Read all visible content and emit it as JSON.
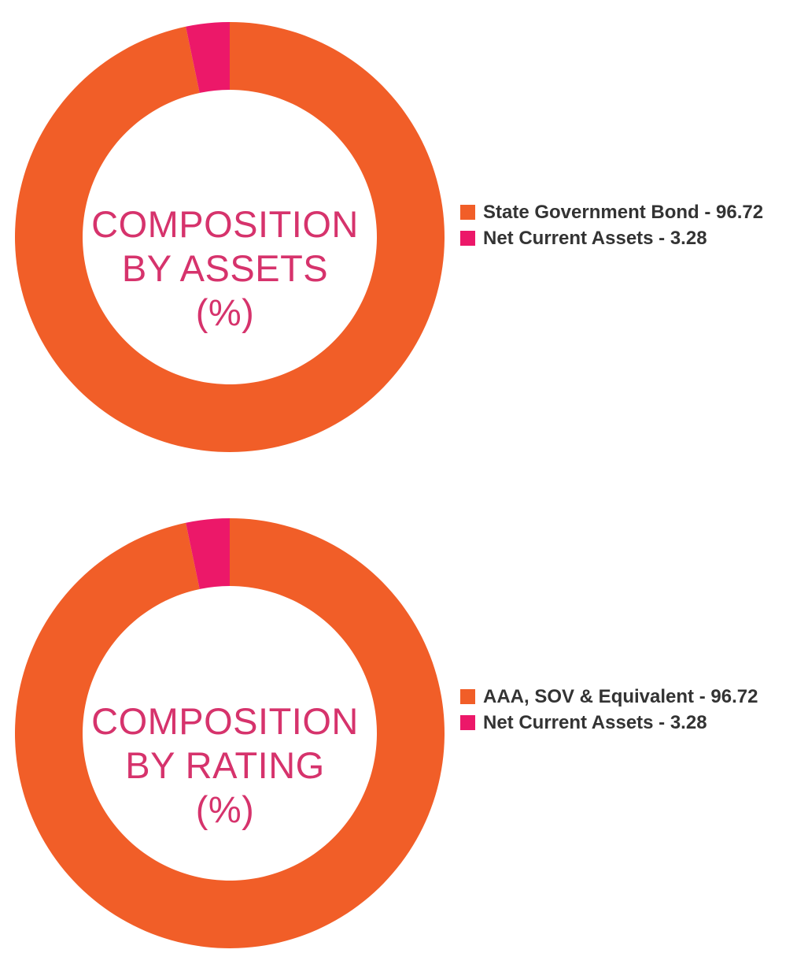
{
  "colors": {
    "primary": "#f15e28",
    "secondary": "#ec1869",
    "title": "#d6336c",
    "legend_text": "#333333"
  },
  "chart_data": [
    {
      "type": "pie",
      "title_lines": [
        "COMPOSITION",
        "BY ASSETS",
        "(%)"
      ],
      "legend_position": "right",
      "slices": [
        {
          "label": "State Government Bond - 96.72",
          "value": 96.72,
          "color": "#f15e28"
        },
        {
          "label": "Net Current Assets - 3.28",
          "value": 3.28,
          "color": "#ec1869"
        }
      ]
    },
    {
      "type": "pie",
      "title_lines": [
        "COMPOSITION",
        "BY RATING",
        "(%)"
      ],
      "legend_position": "right",
      "slices": [
        {
          "label": "AAA, SOV & Equivalent - 96.72",
          "value": 96.72,
          "color": "#f15e28"
        },
        {
          "label": "Net Current Assets - 3.28",
          "value": 3.28,
          "color": "#ec1869"
        }
      ]
    }
  ]
}
